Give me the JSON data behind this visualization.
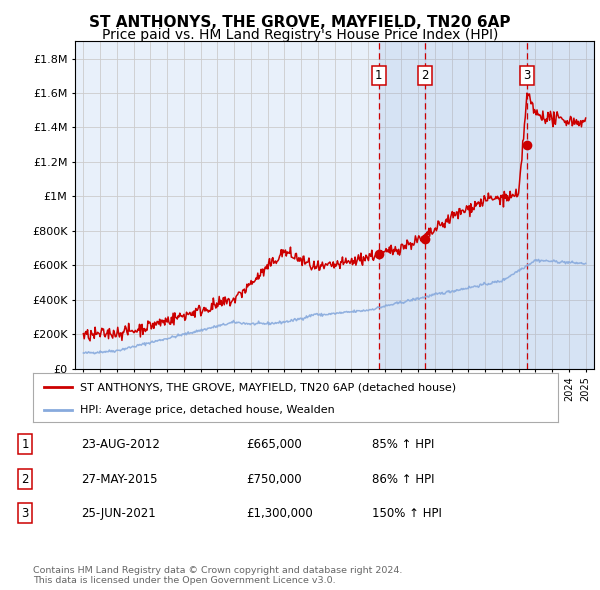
{
  "title": "ST ANTHONYS, THE GROVE, MAYFIELD, TN20 6AP",
  "subtitle": "Price paid vs. HM Land Registry's House Price Index (HPI)",
  "legend_line1": "ST ANTHONYS, THE GROVE, MAYFIELD, TN20 6AP (detached house)",
  "legend_line2": "HPI: Average price, detached house, Wealden",
  "transactions": [
    {
      "num": 1,
      "date": "23-AUG-2012",
      "price": 665000,
      "pct": "85%",
      "year": 2012.648
    },
    {
      "num": 2,
      "date": "27-MAY-2015",
      "price": 750000,
      "pct": "86%",
      "year": 2015.403
    },
    {
      "num": 3,
      "date": "25-JUN-2021",
      "price": 1300000,
      "pct": "150%",
      "year": 2021.479
    }
  ],
  "ylabel_ticks": [
    "£0",
    "£200K",
    "£400K",
    "£600K",
    "£800K",
    "£1M",
    "£1.2M",
    "£1.4M",
    "£1.6M",
    "£1.8M"
  ],
  "ytick_values": [
    0,
    200000,
    400000,
    600000,
    800000,
    1000000,
    1200000,
    1400000,
    1600000,
    1800000
  ],
  "xlim": [
    1994.5,
    2025.5
  ],
  "ylim": [
    0,
    1900000
  ],
  "footer": "Contains HM Land Registry data © Crown copyright and database right 2024.\nThis data is licensed under the Open Government Licence v3.0.",
  "red_color": "#cc0000",
  "blue_color": "#88aadd",
  "bg_color": "#e8f0fa",
  "grid_color": "#cccccc",
  "title_fontsize": 11,
  "subtitle_fontsize": 10
}
